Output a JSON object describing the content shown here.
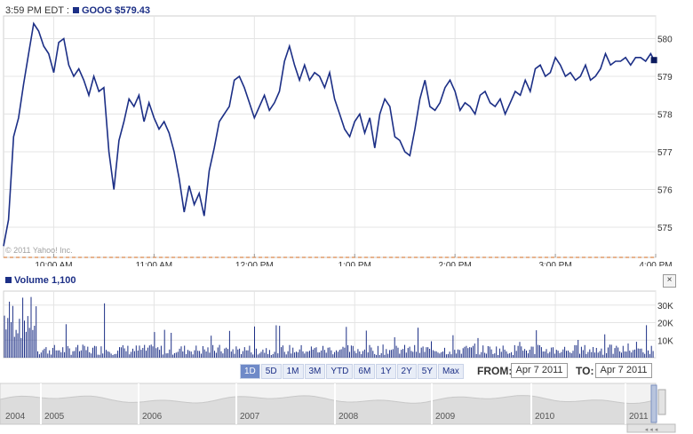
{
  "header": {
    "time": "3:59 PM EDT :",
    "symbol": "GOOG",
    "price": "$579.43"
  },
  "watermark": "© 2011 Yahoo! Inc.",
  "volume_label": "Volume",
  "volume_value": "1,100",
  "close_label": "×",
  "ranges": [
    "1D",
    "5D",
    "1M",
    "3M",
    "YTD",
    "6M",
    "1Y",
    "2Y",
    "5Y",
    "Max"
  ],
  "active_range": "1D",
  "from_label": "FROM:",
  "from_date": "Apr 7 2011",
  "to_label": "TO:",
  "to_date": "Apr 7 2011",
  "navigator_years": [
    "2004",
    "2005",
    "2006",
    "2007",
    "2008",
    "2009",
    "2010",
    "2011"
  ],
  "colors": {
    "line": "#1c2f86",
    "volume": "#1c2f86",
    "reference": "#d2691e"
  },
  "chart_data": {
    "type": "line",
    "series": [
      {
        "name": "GOOG",
        "x": [
          "09:30",
          "09:33",
          "09:36",
          "09:39",
          "09:42",
          "09:45",
          "09:48",
          "09:51",
          "09:54",
          "09:57",
          "10:00",
          "10:03",
          "10:06",
          "10:09",
          "10:12",
          "10:15",
          "10:18",
          "10:21",
          "10:24",
          "10:27",
          "10:30",
          "10:33",
          "10:36",
          "10:39",
          "10:42",
          "10:45",
          "10:48",
          "10:51",
          "10:54",
          "10:57",
          "11:00",
          "11:03",
          "11:06",
          "11:09",
          "11:12",
          "11:15",
          "11:18",
          "11:21",
          "11:24",
          "11:27",
          "11:30",
          "11:33",
          "11:36",
          "11:39",
          "11:42",
          "11:45",
          "11:48",
          "11:51",
          "11:54",
          "11:57",
          "12:00",
          "12:03",
          "12:06",
          "12:09",
          "12:12",
          "12:15",
          "12:18",
          "12:21",
          "12:24",
          "12:27",
          "12:30",
          "12:33",
          "12:36",
          "12:39",
          "12:42",
          "12:45",
          "12:48",
          "12:51",
          "12:54",
          "12:57",
          "13:00",
          "13:03",
          "13:06",
          "13:09",
          "13:12",
          "13:15",
          "13:18",
          "13:21",
          "13:24",
          "13:27",
          "13:30",
          "13:33",
          "13:36",
          "13:39",
          "13:42",
          "13:45",
          "13:48",
          "13:51",
          "13:54",
          "13:57",
          "14:00",
          "14:03",
          "14:06",
          "14:09",
          "14:12",
          "14:15",
          "14:18",
          "14:21",
          "14:24",
          "14:27",
          "14:30",
          "14:33",
          "14:36",
          "14:39",
          "14:42",
          "14:45",
          "14:48",
          "14:51",
          "14:54",
          "14:57",
          "15:00",
          "15:03",
          "15:06",
          "15:09",
          "15:12",
          "15:15",
          "15:18",
          "15:21",
          "15:24",
          "15:27",
          "15:30",
          "15:33",
          "15:36",
          "15:39",
          "15:42",
          "15:45",
          "15:48",
          "15:51",
          "15:54",
          "15:57",
          "15:59"
        ],
        "values": [
          574.5,
          575.2,
          577.4,
          577.9,
          578.8,
          579.6,
          580.4,
          580.2,
          579.8,
          579.6,
          579.1,
          579.9,
          580.0,
          579.3,
          579.0,
          579.2,
          578.9,
          578.5,
          579.0,
          578.6,
          578.7,
          577.0,
          576.0,
          577.3,
          577.8,
          578.4,
          578.2,
          578.5,
          577.8,
          578.3,
          577.9,
          577.6,
          577.8,
          577.5,
          577.0,
          576.3,
          575.4,
          576.1,
          575.6,
          575.9,
          575.3,
          576.5,
          577.1,
          577.8,
          578.0,
          578.2,
          578.9,
          579.0,
          578.7,
          578.3,
          577.9,
          578.2,
          578.5,
          578.1,
          578.3,
          578.6,
          579.4,
          579.8,
          579.3,
          578.9,
          579.3,
          578.9,
          579.1,
          579.0,
          578.7,
          579.1,
          578.4,
          578.0,
          577.6,
          577.4,
          577.8,
          578.0,
          577.5,
          577.9,
          577.1,
          578.0,
          578.4,
          578.2,
          577.4,
          577.3,
          577.0,
          576.9,
          577.6,
          578.4,
          578.9,
          578.2,
          578.1,
          578.3,
          578.7,
          578.9,
          578.6,
          578.1,
          578.3,
          578.2,
          578.0,
          578.5,
          578.6,
          578.3,
          578.2,
          578.4,
          578.0,
          578.3,
          578.6,
          578.5,
          578.9,
          578.6,
          579.2,
          579.3,
          579.0,
          579.1,
          579.5,
          579.3,
          579.0,
          579.1,
          578.9,
          579.0,
          579.3,
          578.9,
          579.0,
          579.2,
          579.6,
          579.3,
          579.4,
          579.4,
          579.5,
          579.3,
          579.5,
          579.5,
          579.4,
          579.6,
          579.43
        ]
      }
    ],
    "x_ticks": [
      "10:00 AM",
      "11:00 AM",
      "12:00 PM",
      "1:00 PM",
      "2:00 PM",
      "3:00 PM",
      "4:00 PM"
    ],
    "y_ticks": [
      "575",
      "576",
      "577",
      "578",
      "579",
      "580"
    ],
    "ylim": [
      574.2,
      580.6
    ],
    "x_range": [
      "09:30",
      "16:00"
    ],
    "reference_line": 574.2,
    "volume": {
      "y_ticks": [
        "10K",
        "20K",
        "30K"
      ],
      "ylim": [
        0,
        38000
      ]
    },
    "grid": true
  }
}
